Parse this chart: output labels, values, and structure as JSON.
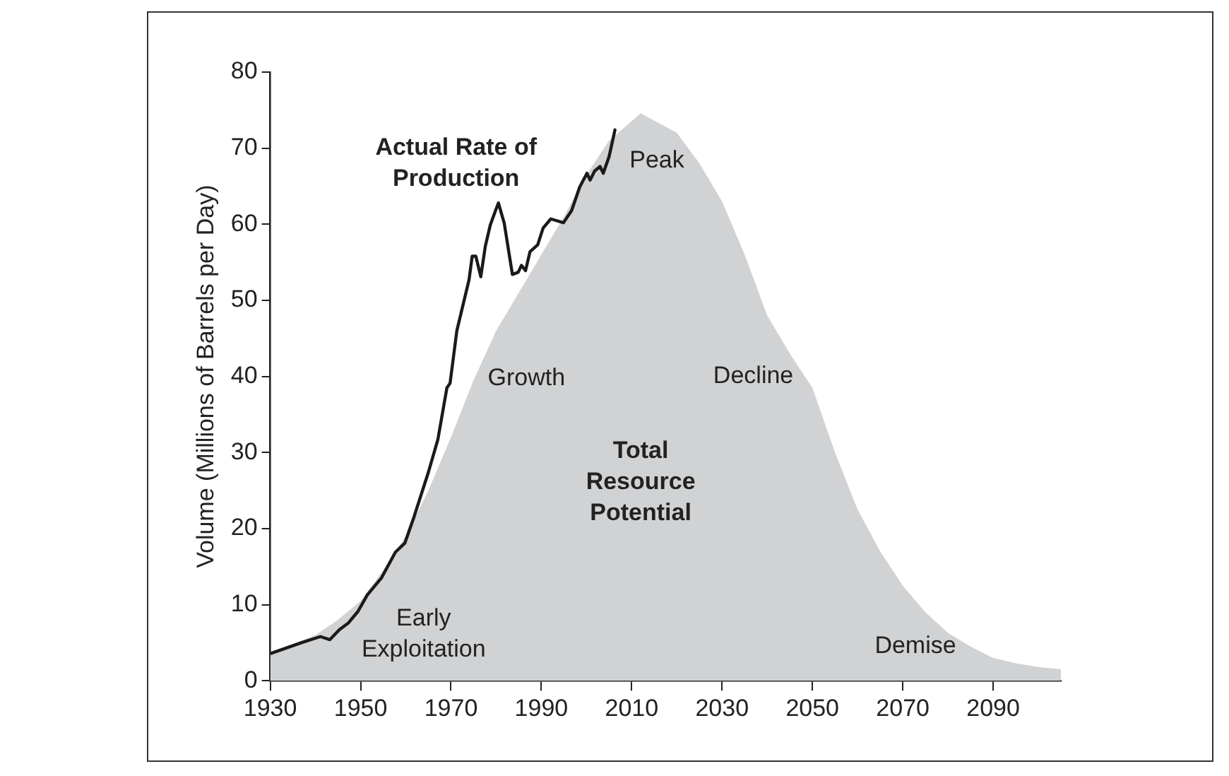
{
  "chart_data": {
    "type": "line",
    "ylabel": "Volume (Millions of Barrels per Day)",
    "xlim": [
      1930,
      2105
    ],
    "xticks": [
      1930,
      1950,
      1970,
      1990,
      2010,
      2030,
      2050,
      2070,
      2090
    ],
    "ylim": [
      0,
      80
    ],
    "yticks": [
      0,
      10,
      20,
      30,
      40,
      50,
      60,
      70,
      80
    ],
    "grid": false,
    "legend": false,
    "marker": "none",
    "series": [
      {
        "name": "Total Resource Potential",
        "type": "area",
        "color": "#d1d2d4",
        "x": [
          1930,
          1935,
          1940,
          1945,
          1950,
          1955,
          1960,
          1965,
          1970,
          1975,
          1980,
          1985,
          1990,
          1995,
          2000,
          2005,
          2012,
          2020,
          2025,
          2030,
          2035,
          2040,
          2045,
          2050,
          2055,
          2060,
          2065,
          2070,
          2075,
          2080,
          2085,
          2090,
          2095,
          2100,
          2105
        ],
        "values": [
          3.7,
          4.8,
          6,
          8,
          10.5,
          14.5,
          19,
          25,
          32,
          39.5,
          46,
          51,
          56,
          61,
          66.5,
          71,
          74.6,
          72,
          68,
          63,
          56,
          48,
          43,
          38.5,
          30,
          22.5,
          17,
          12.5,
          9,
          6.3,
          4.5,
          3,
          2.3,
          1.8,
          1.5
        ]
      },
      {
        "name": "Actual Rate of Production",
        "color": "#1a1a1a",
        "x": [
          1930.2,
          1936.9,
          1941.1,
          1943.2,
          1945.3,
          1947.3,
          1949.4,
          1951.5,
          1954.6,
          1957.7,
          1959.8,
          1961.8,
          1965,
          1967.1,
          1969.1,
          1969.8,
          1971.3,
          1974,
          1974.7,
          1975.5,
          1976.6,
          1977.6,
          1978.7,
          1979.8,
          1980.5,
          1981.8,
          1983.6,
          1984.9,
          1985.6,
          1986.5,
          1987.5,
          1989.2,
          1990.4,
          1992.1,
          1994.9,
          1996.7,
          1998.5,
          2000.1,
          2000.8,
          2001.8,
          2003,
          2003.7,
          2005,
          2006.3
        ],
        "values": [
          3.6,
          5,
          5.8,
          5.4,
          6.7,
          7.6,
          9.1,
          11.3,
          13.5,
          16.9,
          18.1,
          21.5,
          27.4,
          31.7,
          38.5,
          39.1,
          46,
          52.7,
          55.8,
          55.8,
          53.1,
          57.1,
          59.9,
          61.7,
          62.8,
          60.1,
          53.4,
          53.7,
          54.6,
          53.9,
          56.4,
          57.3,
          59.5,
          60.7,
          60.2,
          61.8,
          64.9,
          66.7,
          65.8,
          67,
          67.6,
          66.7,
          68.9,
          72.4
        ]
      }
    ],
    "annotations": [
      "Early Exploitation",
      "Growth",
      "Peak",
      "Decline",
      "Demise"
    ]
  }
}
